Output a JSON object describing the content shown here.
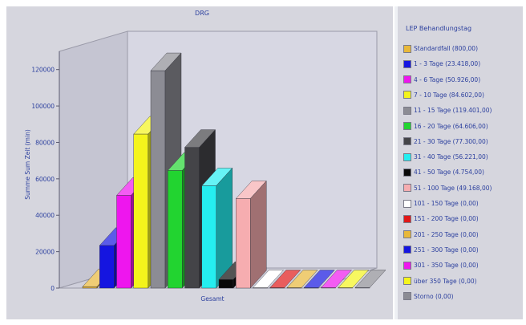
{
  "chart_data": {
    "type": "bar",
    "title": "DRG",
    "xlabel": "Gesamt",
    "ylabel": "Summe Sum Zeit (min)",
    "categories": [
      "Gesamt"
    ],
    "ylim": [
      0,
      130000
    ],
    "yticks": [
      0,
      20000,
      40000,
      60000,
      80000,
      100000,
      120000
    ],
    "legend_title": "LEP Behandlungstag",
    "legend_position": "right",
    "grid": false,
    "series": [
      {
        "name": "Standardfall (800,00)",
        "label": "Standardfall (800,00)",
        "value": 800,
        "color": "#e8b83a"
      },
      {
        "name": "1 - 3 Tage (23.418,00)",
        "label": "1 - 3 Tage (23.418,00)",
        "value": 23418,
        "color": "#1515e0"
      },
      {
        "name": "4 - 6 Tage (50.926,00)",
        "label": "4 - 6 Tage (50.926,00)",
        "value": 50926,
        "color": "#ee16ee"
      },
      {
        "name": "7 - 10 Tage (84.602,00)",
        "label": "7 - 10 Tage (84.602,00)",
        "value": 84602,
        "color": "#f4f41c"
      },
      {
        "name": "11 - 15 Tage (119.401,00)",
        "label": "11 - 15 Tage (119.401,00)",
        "value": 119401,
        "color": "#8c8c94"
      },
      {
        "name": "16 - 20 Tage (64.606,00)",
        "label": "16 - 20 Tage (64.606,00)",
        "value": 64606,
        "color": "#22d430"
      },
      {
        "name": "21 - 30 Tage (77.300,00)",
        "label": "21 - 30 Tage (77.300,00)",
        "value": 77300,
        "color": "#444448"
      },
      {
        "name": "31 - 40 Tage (56.221,00)",
        "label": "31 - 40 Tage (56.221,00)",
        "value": 56221,
        "color": "#25eef0"
      },
      {
        "name": "41 - 50 Tage (4.754,00)",
        "label": "41 - 50 Tage (4.754,00)",
        "value": 4754,
        "color": "#0a0a0a"
      },
      {
        "name": "51 - 100 Tage (49.168,00)",
        "label": "51 - 100 Tage (49.168,00)",
        "value": 49168,
        "color": "#f6adb0"
      },
      {
        "name": "101 - 150 Tage (0,00)",
        "label": "101 - 150 Tage (0,00)",
        "value": 0,
        "color": "#ffffff"
      },
      {
        "name": "151 - 200 Tage (0,00)",
        "label": "151 - 200 Tage (0,00)",
        "value": 0,
        "color": "#e01818"
      },
      {
        "name": "201 - 250 Tage (0,00)",
        "label": "201 - 250 Tage (0,00)",
        "value": 0,
        "color": "#e8b83a"
      },
      {
        "name": "251 - 300 Tage (0,00)",
        "label": "251 - 300 Tage (0,00)",
        "value": 0,
        "color": "#1515e0"
      },
      {
        "name": "301 - 350 Tage (0,00)",
        "label": "301 - 350 Tage (0,00)",
        "value": 0,
        "color": "#ee16ee"
      },
      {
        "name": "über 350 Tage (0,00)",
        "label": "über 350 Tage (0,00)",
        "value": 0,
        "color": "#f4f41c"
      },
      {
        "name": "Storno (0,00)",
        "label": "Storno (0,00)",
        "value": 0,
        "color": "#8c8c94"
      }
    ]
  }
}
